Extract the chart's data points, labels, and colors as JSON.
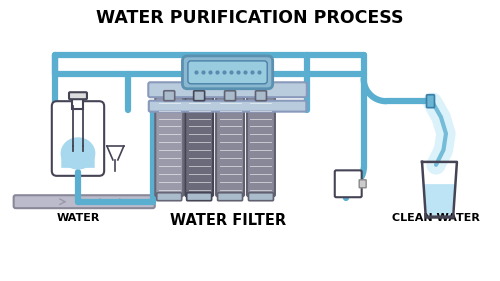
{
  "title": "WATER PURIFICATION PROCESS",
  "label_water": "WATER",
  "label_filter": "WATER FILTER",
  "label_clean": "CLEAN WATER",
  "bg_color": "#ffffff",
  "title_fontsize": 12.5,
  "pipe_color": "#5aafd0",
  "pipe_lw": 4.5,
  "pipe_inner": "#aaddee",
  "filter_gray1": "#9a9aaa",
  "filter_gray2": "#7a7a8a",
  "filter_gray3": "#8a9aaa",
  "filter_gray4": "#8a9aaa",
  "water_fill": "#a8d8ee",
  "glass_water": "#bce4f5",
  "outline_color": "#444455",
  "tap_color": "#5aafd0",
  "manifold_color": "#8ab8d0",
  "manifold_edge": "#5a90b0",
  "pipe_outline": "#3a7fa8"
}
